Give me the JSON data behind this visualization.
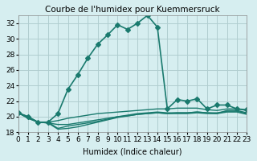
{
  "title": "Courbe de l'humidex pour Kuemmersruck",
  "xlabel": "Humidex (Indice chaleur)",
  "ylabel": "",
  "background_color": "#d6eef0",
  "grid_color": "#b0cdd0",
  "line_color": "#1a7a6e",
  "xlim": [
    0,
    23
  ],
  "ylim": [
    18,
    33
  ],
  "yticks": [
    18,
    20,
    22,
    24,
    26,
    28,
    30,
    32
  ],
  "xticks": [
    0,
    1,
    2,
    3,
    4,
    5,
    6,
    7,
    8,
    9,
    10,
    11,
    12,
    13,
    14,
    15,
    16,
    17,
    18,
    19,
    20,
    21,
    22,
    23
  ],
  "series": [
    {
      "x": [
        0,
        1,
        2,
        3,
        4,
        5,
        6,
        7,
        8,
        9,
        10,
        11,
        12,
        13,
        14,
        15,
        16,
        17,
        18,
        19,
        20,
        21,
        22,
        23
      ],
      "y": [
        20.5,
        20.0,
        19.3,
        19.3,
        20.4,
        23.5,
        25.4,
        27.5,
        29.3,
        30.5,
        31.8,
        31.2,
        32.0,
        33.0,
        31.5,
        21.0,
        22.2,
        22.0,
        22.3,
        21.0,
        21.5,
        21.5,
        21.0,
        20.9
      ],
      "marker": "D",
      "markersize": 3,
      "linewidth": 1.2
    },
    {
      "x": [
        0,
        1,
        2,
        3,
        4,
        5,
        6,
        7,
        8,
        9,
        10,
        11,
        12,
        13,
        14,
        15,
        16,
        17,
        18,
        19,
        20,
        21,
        22,
        23
      ],
      "y": [
        20.5,
        20.0,
        19.3,
        19.3,
        19.5,
        19.8,
        20.0,
        20.2,
        20.4,
        20.5,
        20.6,
        20.7,
        20.8,
        20.9,
        21.0,
        21.0,
        21.1,
        21.1,
        21.1,
        20.9,
        20.8,
        21.0,
        21.0,
        20.8
      ],
      "marker": null,
      "markersize": 0,
      "linewidth": 1.0
    },
    {
      "x": [
        0,
        1,
        2,
        3,
        4,
        5,
        6,
        7,
        8,
        9,
        10,
        11,
        12,
        13,
        14,
        15,
        16,
        17,
        18,
        19,
        20,
        21,
        22,
        23
      ],
      "y": [
        20.5,
        19.8,
        19.3,
        19.2,
        19.0,
        19.0,
        19.2,
        19.4,
        19.6,
        19.8,
        20.0,
        20.1,
        20.3,
        20.4,
        20.5,
        20.4,
        20.5,
        20.5,
        20.6,
        20.5,
        20.4,
        20.8,
        20.8,
        20.5
      ],
      "marker": null,
      "markersize": 0,
      "linewidth": 1.0
    },
    {
      "x": [
        0,
        1,
        2,
        3,
        4,
        5,
        6,
        7,
        8,
        9,
        10,
        11,
        12,
        13,
        14,
        15,
        16,
        17,
        18,
        19,
        20,
        21,
        22,
        23
      ],
      "y": [
        20.5,
        19.8,
        19.3,
        19.3,
        18.5,
        18.8,
        19.0,
        19.2,
        19.4,
        19.7,
        20.0,
        20.2,
        20.4,
        20.5,
        20.6,
        20.5,
        20.5,
        20.5,
        20.6,
        20.5,
        20.5,
        20.7,
        20.7,
        20.4
      ],
      "marker": null,
      "markersize": 0,
      "linewidth": 1.0
    },
    {
      "x": [
        0,
        1,
        2,
        3,
        4,
        5,
        6,
        7,
        8,
        9,
        10,
        11,
        12,
        13,
        14,
        15,
        16,
        17,
        18,
        19,
        20,
        21,
        22,
        23
      ],
      "y": [
        20.5,
        19.9,
        19.3,
        19.2,
        18.4,
        18.5,
        18.7,
        19.0,
        19.3,
        19.6,
        19.9,
        20.1,
        20.3,
        20.4,
        20.5,
        20.4,
        20.4,
        20.4,
        20.5,
        20.4,
        20.4,
        20.6,
        20.6,
        20.3
      ],
      "marker": null,
      "markersize": 0,
      "linewidth": 1.0
    }
  ],
  "title_fontsize": 7.5,
  "axis_fontsize": 7,
  "tick_fontsize": 6.5
}
